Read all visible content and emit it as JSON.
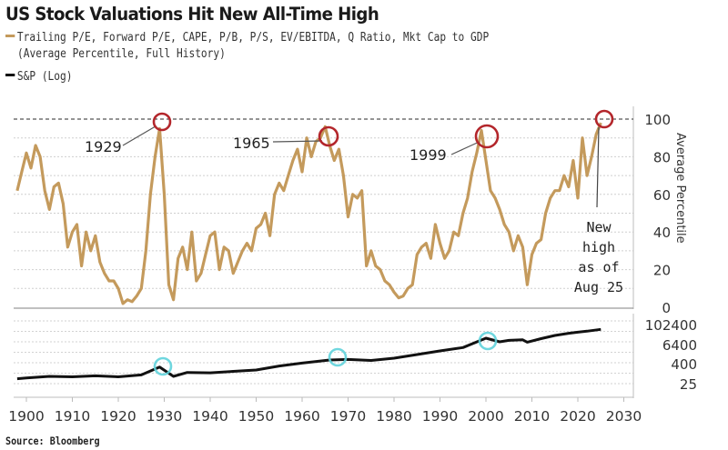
{
  "title": "US Stock Valuations Hit New All-Time High",
  "legend": [
    {
      "label": "Trailing P/E, Forward P/E, CAPE, P/B, P/S, EV/EBITDA, Q Ratio, Mkt Cap to GDP",
      "label2": "(Average Percentile, Full History)",
      "color": "#c49a5c"
    },
    {
      "label": "S&P (Log)",
      "color": "#111111"
    }
  ],
  "source": "Source: Bloomberg",
  "chart_data": [
    {
      "type": "line",
      "name": "valuation-percentile",
      "title": "Average Percentile of Valuation Metrics",
      "ylabel": "Average Percentile",
      "ylim": [
        0,
        100
      ],
      "yticks": [
        "100",
        "80",
        "60",
        "40",
        "20",
        "0"
      ],
      "grid": true,
      "reference_line": {
        "value": 100,
        "style": "dashed"
      },
      "series": [
        {
          "name": "Trailing P/E, Forward P/E, CAPE, P/B, P/S, EV/EBITDA, Q Ratio, Mkt Cap to GDP (Average Percentile, Full History)",
          "color": "#c49a5c",
          "x": [
            1898,
            1899,
            1900,
            1901,
            1902,
            1903,
            1904,
            1905,
            1906,
            1907,
            1908,
            1909,
            1910,
            1911,
            1912,
            1913,
            1914,
            1915,
            1916,
            1917,
            1918,
            1919,
            1920,
            1921,
            1922,
            1923,
            1924,
            1925,
            1926,
            1927,
            1928,
            1929,
            1930,
            1931,
            1932,
            1933,
            1934,
            1935,
            1936,
            1937,
            1938,
            1939,
            1940,
            1941,
            1942,
            1943,
            1944,
            1945,
            1946,
            1947,
            1948,
            1949,
            1950,
            1951,
            1952,
            1953,
            1954,
            1955,
            1956,
            1957,
            1958,
            1959,
            1960,
            1961,
            1962,
            1963,
            1964,
            1965,
            1966,
            1967,
            1968,
            1969,
            1970,
            1971,
            1972,
            1973,
            1974,
            1975,
            1976,
            1977,
            1978,
            1979,
            1980,
            1981,
            1982,
            1983,
            1984,
            1985,
            1986,
            1987,
            1988,
            1989,
            1990,
            1991,
            1992,
            1993,
            1994,
            1995,
            1996,
            1997,
            1998,
            1999,
            2000,
            2001,
            2002,
            2003,
            2004,
            2005,
            2006,
            2007,
            2008,
            2009,
            2010,
            2011,
            2012,
            2013,
            2014,
            2015,
            2016,
            2017,
            2018,
            2019,
            2020,
            2021,
            2022,
            2023,
            2024,
            2025
          ],
          "values": [
            62,
            72,
            82,
            74,
            86,
            80,
            62,
            52,
            64,
            66,
            55,
            32,
            40,
            44,
            22,
            40,
            30,
            38,
            24,
            18,
            14,
            14,
            10,
            2,
            4,
            3,
            6,
            10,
            30,
            60,
            80,
            95,
            60,
            12,
            4,
            26,
            32,
            20,
            40,
            14,
            18,
            28,
            38,
            40,
            20,
            32,
            30,
            18,
            24,
            30,
            34,
            30,
            42,
            44,
            50,
            38,
            60,
            66,
            62,
            70,
            78,
            84,
            72,
            90,
            80,
            88,
            90,
            96,
            86,
            78,
            84,
            70,
            48,
            60,
            58,
            62,
            22,
            30,
            22,
            20,
            14,
            12,
            8,
            5,
            6,
            10,
            12,
            28,
            32,
            34,
            26,
            44,
            34,
            26,
            30,
            40,
            38,
            50,
            58,
            72,
            82,
            94,
            78,
            62,
            58,
            52,
            44,
            40,
            30,
            38,
            32,
            12,
            28,
            34,
            36,
            50,
            58,
            62,
            62,
            70,
            64,
            78,
            58,
            90,
            70,
            80,
            92,
            98
          ]
        }
      ],
      "annotations": [
        {
          "label": "1929",
          "x": 1929,
          "y": 96,
          "marker": "red-circle"
        },
        {
          "label": "1965",
          "x": 1965,
          "y": 90,
          "marker": "red-circle"
        },
        {
          "label": "1999",
          "x": 1999,
          "y": 90,
          "marker": "red-circle"
        },
        {
          "label_lines": [
            "New",
            "high",
            "as of",
            "Aug 25"
          ],
          "x": 2025,
          "y": 99,
          "marker": "red-circle"
        }
      ]
    },
    {
      "type": "line",
      "name": "sp-log",
      "title": "S&P (Log)",
      "yscale": "log",
      "ylim": [
        10,
        200000
      ],
      "yticks": [
        "102400",
        "6400",
        "400",
        "25"
      ],
      "grid": true,
      "series": [
        {
          "name": "S&P (Log)",
          "color": "#111111",
          "x": [
            1898,
            1900,
            1905,
            1910,
            1915,
            1920,
            1925,
            1929,
            1932,
            1935,
            1940,
            1945,
            1950,
            1955,
            1960,
            1966,
            1970,
            1975,
            1980,
            1985,
            1990,
            1995,
            2000,
            2003,
            2005,
            2008,
            2009,
            2012,
            2015,
            2018,
            2020,
            2022,
            2025
          ],
          "values": [
            50,
            55,
            70,
            65,
            75,
            65,
            85,
            260,
            70,
            120,
            115,
            140,
            170,
            300,
            450,
            700,
            750,
            650,
            900,
            1500,
            2500,
            4000,
            15000,
            9000,
            11000,
            12000,
            8500,
            14000,
            22000,
            30000,
            35000,
            40000,
            52000
          ]
        }
      ],
      "annotations": [
        {
          "x": 1929,
          "marker": "cyan-circle"
        },
        {
          "x": 1967,
          "marker": "cyan-circle"
        },
        {
          "x": 2000,
          "marker": "cyan-circle"
        }
      ]
    }
  ],
  "x_axis": {
    "ticks": [
      "1900",
      "1910",
      "1920",
      "1930",
      "1940",
      "1950",
      "1960",
      "1970",
      "1980",
      "1990",
      "2000",
      "2010",
      "2020",
      "2030"
    ],
    "range": [
      1897,
      2032
    ]
  },
  "colors": {
    "valuation": "#c49a5c",
    "sp": "#111111",
    "highlight_red": "#b3262b",
    "highlight_cyan": "#5fd3db",
    "grid": "#c8c8c8"
  }
}
